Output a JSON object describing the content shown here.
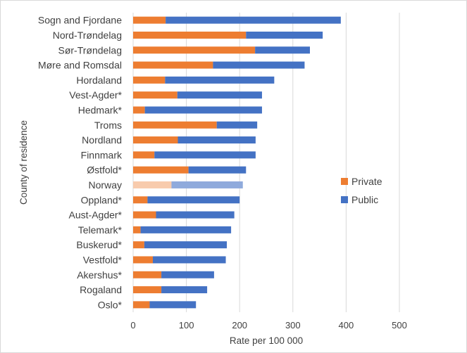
{
  "chart_data": {
    "type": "bar",
    "orientation": "horizontal",
    "stacked": true,
    "xlabel": "Rate per 100 000",
    "ylabel": "County of residence",
    "xlim": [
      0,
      500
    ],
    "xticks": [
      "0",
      "100",
      "200",
      "300",
      "400",
      "500"
    ],
    "grid": "vertical",
    "legend_position": "right",
    "highlight_category": "Norway",
    "categories": [
      "Sogn and Fjordane",
      "Nord-Trøndelag",
      "Sør-Trøndelag",
      "Møre and Romsdal",
      "Hordaland",
      "Vest-Agder*",
      "Hedmark*",
      "Troms",
      "Nordland",
      "Finnmark",
      "Østfold*",
      "Norway",
      "Oppland*",
      "Aust-Agder*",
      "Telemark*",
      "Buskerud*",
      "Vestfold*",
      "Akershus*",
      "Rogaland",
      "Oslo*"
    ],
    "series": [
      {
        "name": "Private",
        "color": "#ED7D31",
        "highlight_color": "#F8CBAD",
        "values": [
          61,
          212,
          229,
          150,
          60,
          83,
          22,
          157,
          84,
          40,
          104,
          72,
          27,
          43,
          14,
          21,
          37,
          53,
          53,
          31
        ]
      },
      {
        "name": "Public",
        "color": "#4472C4",
        "highlight_color": "#8FAADC",
        "values": [
          329,
          144,
          103,
          172,
          205,
          159,
          220,
          76,
          146,
          190,
          108,
          134,
          173,
          147,
          170,
          155,
          137,
          99,
          86,
          87
        ]
      }
    ]
  }
}
